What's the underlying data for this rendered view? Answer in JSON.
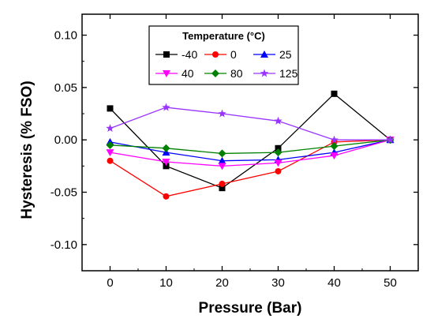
{
  "chart_data": {
    "type": "line",
    "xlabel": "Pressure (Bar)",
    "ylabel": "Hysteresis (% FSO)",
    "xlim": [
      -5,
      55
    ],
    "ylim": [
      -0.125,
      0.12
    ],
    "xticks": [
      0,
      10,
      20,
      30,
      40,
      50
    ],
    "yticks": [
      -0.1,
      -0.05,
      0.0,
      0.05,
      0.1
    ],
    "ytick_labels": [
      "-0.10",
      "-0.05",
      "0.00",
      "0.05",
      "0.10"
    ],
    "grid": false,
    "legend": {
      "title": "Temperature (°C)",
      "placement": "top-center",
      "columns": 3
    },
    "x": [
      0,
      10,
      20,
      30,
      40,
      50
    ],
    "series": [
      {
        "name": "-40",
        "color": "#000000",
        "marker": "square",
        "values": [
          0.03,
          -0.025,
          -0.046,
          -0.008,
          0.044,
          0.0
        ]
      },
      {
        "name": "0",
        "color": "#ff0000",
        "marker": "circle",
        "values": [
          -0.02,
          -0.054,
          -0.042,
          -0.03,
          -0.002,
          0.0
        ]
      },
      {
        "name": "25",
        "color": "#0000ff",
        "marker": "triangle-up",
        "values": [
          -0.002,
          -0.012,
          -0.02,
          -0.019,
          -0.012,
          0.0
        ]
      },
      {
        "name": "40",
        "color": "#ff00ff",
        "marker": "triangle-down",
        "values": [
          -0.012,
          -0.021,
          -0.025,
          -0.022,
          -0.015,
          0.0
        ]
      },
      {
        "name": "80",
        "color": "#008000",
        "marker": "diamond",
        "values": [
          -0.005,
          -0.008,
          -0.013,
          -0.012,
          -0.006,
          0.0
        ]
      },
      {
        "name": "125",
        "color": "#9933ff",
        "marker": "star",
        "values": [
          0.011,
          0.031,
          0.025,
          0.018,
          0.0,
          0.0
        ]
      }
    ]
  }
}
